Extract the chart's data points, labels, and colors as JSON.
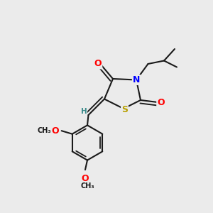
{
  "bg_color": "#ebebeb",
  "bond_color": "#1a1a1a",
  "bond_width": 1.5,
  "dbo": 0.015,
  "atom_colors": {
    "O": "#ff0000",
    "N": "#0000ff",
    "S": "#b8a000",
    "H": "#3a8a8a",
    "C": "#1a1a1a"
  },
  "fs": 9,
  "fs_small": 7.5
}
